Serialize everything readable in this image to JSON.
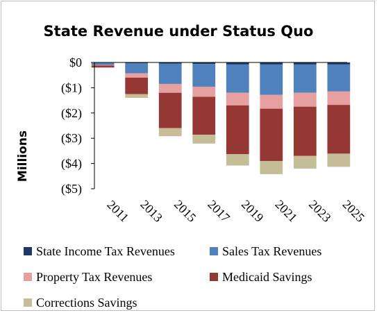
{
  "chart_data": {
    "type": "bar",
    "stacked": true,
    "title": "State Revenue under Status Quo",
    "ylabel": "Millions",
    "xlabel": "",
    "ylim": [
      -5,
      0
    ],
    "y_ticks": [
      0,
      -1,
      -2,
      -3,
      -4,
      -5
    ],
    "y_tick_labels": [
      "$0",
      "($1)",
      "($2)",
      "($3)",
      "($4)",
      "($5)"
    ],
    "categories": [
      "2011",
      "2012",
      "2013",
      "2014",
      "2015",
      "2016",
      "2017",
      "2018",
      "2019",
      "2020",
      "2021",
      "2022",
      "2023",
      "2024",
      "2025"
    ],
    "x_tick_labels": [
      "2011",
      "2013",
      "2015",
      "2017",
      "2019",
      "2021",
      "2023",
      "2025"
    ],
    "legend_position": "bottom",
    "series": [
      {
        "name": "State Income Tax Revenues",
        "color": "#1f3864",
        "values": [
          -0.02,
          null,
          -0.03,
          null,
          -0.05,
          null,
          -0.06,
          null,
          -0.08,
          null,
          -0.08,
          null,
          -0.08,
          null,
          -0.08
        ]
      },
      {
        "name": "Sales Tax Revenues",
        "color": "#4f81bd",
        "values": [
          -0.08,
          null,
          -0.4,
          null,
          -0.8,
          null,
          -0.9,
          null,
          -1.12,
          null,
          -1.2,
          null,
          -1.12,
          null,
          -1.07
        ]
      },
      {
        "name": "Property Tax Revenues",
        "color": "#e6a0a0",
        "values": [
          -0.02,
          null,
          -0.17,
          null,
          -0.35,
          null,
          -0.4,
          null,
          -0.5,
          null,
          -0.55,
          null,
          -0.55,
          null,
          -0.53
        ]
      },
      {
        "name": "Medicaid Savings",
        "color": "#953735",
        "values": [
          -0.08,
          null,
          -0.65,
          null,
          -1.4,
          null,
          -1.5,
          null,
          -1.93,
          null,
          -2.07,
          null,
          -1.95,
          null,
          -1.93
        ]
      },
      {
        "name": "Corrections Savings",
        "color": "#c4bd97",
        "values": [
          0,
          null,
          -0.15,
          null,
          -0.32,
          null,
          -0.35,
          null,
          -0.45,
          null,
          -0.52,
          null,
          -0.5,
          null,
          -0.52
        ]
      }
    ]
  }
}
